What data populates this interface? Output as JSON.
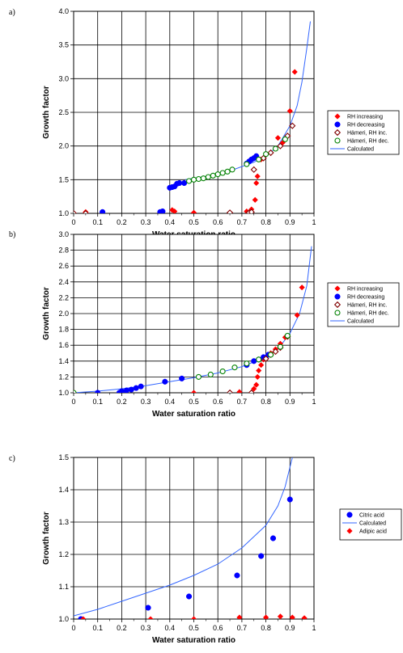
{
  "chart_data": [
    {
      "type": "scatter",
      "panel_label": "a)",
      "xlabel": "Water saturation ratio",
      "ylabel": "Growth factor",
      "xlim": [
        0,
        1
      ],
      "ylim": [
        1.0,
        4.0
      ],
      "xticks": [
        "0",
        "0.1",
        "0.2",
        "0.3",
        "0.4",
        "0.5",
        "0.6",
        "0.7",
        "0.8",
        "0.9",
        "1"
      ],
      "yticks": [
        "1.0",
        "1.5",
        "2.0",
        "2.5",
        "3.0",
        "3.5",
        "4.0"
      ],
      "grid": true,
      "legend_position": "right",
      "series": [
        {
          "name": "RH increasing",
          "marker": "diamond-filled",
          "color": "#ff0000",
          "points": [
            [
              0.05,
              1.02
            ],
            [
              0.41,
              1.05
            ],
            [
              0.42,
              1.03
            ],
            [
              0.5,
              1.01
            ],
            [
              0.72,
              1.03
            ],
            [
              0.74,
              1.06
            ],
            [
              0.755,
              1.2
            ],
            [
              0.76,
              1.45
            ],
            [
              0.765,
              1.55
            ],
            [
              0.78,
              1.8
            ],
            [
              0.82,
              1.9
            ],
            [
              0.85,
              2.12
            ],
            [
              0.87,
              2.05
            ],
            [
              0.9,
              2.52
            ],
            [
              0.92,
              3.1
            ]
          ]
        },
        {
          "name": "RH decreasing",
          "marker": "circle-filled",
          "color": "#0000ff",
          "points": [
            [
              0.12,
              1.02
            ],
            [
              0.37,
              1.03
            ],
            [
              0.36,
              1.02
            ],
            [
              0.4,
              1.38
            ],
            [
              0.41,
              1.39
            ],
            [
              0.42,
              1.4
            ],
            [
              0.43,
              1.44
            ],
            [
              0.44,
              1.45
            ],
            [
              0.46,
              1.45
            ],
            [
              0.72,
              1.74
            ],
            [
              0.73,
              1.77
            ],
            [
              0.74,
              1.8
            ],
            [
              0.75,
              1.82
            ],
            [
              0.76,
              1.85
            ]
          ]
        },
        {
          "name": "Hämeri, RH inc.",
          "marker": "diamond-open",
          "color": "#800000",
          "points": [
            [
              0.0,
              1.0
            ],
            [
              0.05,
              1.0
            ],
            [
              0.65,
              1.01
            ],
            [
              0.73,
              1.01
            ],
            [
              0.74,
              1.02
            ],
            [
              0.75,
              1.65
            ],
            [
              0.79,
              1.82
            ],
            [
              0.82,
              1.9
            ],
            [
              0.86,
              2.0
            ],
            [
              0.89,
              2.15
            ],
            [
              0.91,
              2.3
            ]
          ]
        },
        {
          "name": "Hämeri, RH dec.",
          "marker": "circle-open",
          "color": "#008000",
          "points": [
            [
              0.48,
              1.48
            ],
            [
              0.5,
              1.5
            ],
            [
              0.52,
              1.51
            ],
            [
              0.54,
              1.52
            ],
            [
              0.56,
              1.54
            ],
            [
              0.58,
              1.56
            ],
            [
              0.6,
              1.58
            ],
            [
              0.62,
              1.6
            ],
            [
              0.64,
              1.62
            ],
            [
              0.66,
              1.65
            ],
            [
              0.72,
              1.73
            ],
            [
              0.77,
              1.8
            ],
            [
              0.8,
              1.88
            ],
            [
              0.84,
              1.96
            ],
            [
              0.88,
              2.1
            ]
          ]
        },
        {
          "name": "Calculated",
          "marker": "line",
          "color": "#3366ff",
          "points": [
            [
              0.465,
              1.5
            ],
            [
              0.55,
              1.55
            ],
            [
              0.65,
              1.63
            ],
            [
              0.75,
              1.76
            ],
            [
              0.8,
              1.85
            ],
            [
              0.85,
              2.0
            ],
            [
              0.9,
              2.3
            ],
            [
              0.93,
              2.6
            ],
            [
              0.95,
              2.95
            ],
            [
              0.97,
              3.45
            ],
            [
              0.985,
              3.85
            ]
          ]
        }
      ]
    },
    {
      "type": "scatter",
      "panel_label": "b)",
      "xlabel": "Water saturation ratio",
      "ylabel": "Growth factor",
      "xlim": [
        0,
        1
      ],
      "ylim": [
        1.0,
        3.0
      ],
      "xticks": [
        "0",
        "0.1",
        "0.2",
        "0.3",
        "0.4",
        "0.5",
        "0.6",
        "0.7",
        "0.8",
        "0.9",
        "1"
      ],
      "yticks": [
        "1.0",
        "1.2",
        "1.4",
        "1.6",
        "1.8",
        "2.0",
        "2.2",
        "2.4",
        "2.6",
        "2.8",
        "3.0"
      ],
      "grid": true,
      "legend_position": "right",
      "series": [
        {
          "name": "RH increasing",
          "marker": "diamond-filled",
          "color": "#ff0000",
          "points": [
            [
              0.5,
              1.0
            ],
            [
              0.69,
              1.01
            ],
            [
              0.75,
              1.05
            ],
            [
              0.76,
              1.1
            ],
            [
              0.765,
              1.2
            ],
            [
              0.77,
              1.28
            ],
            [
              0.78,
              1.35
            ],
            [
              0.79,
              1.42
            ],
            [
              0.82,
              1.5
            ],
            [
              0.84,
              1.55
            ],
            [
              0.86,
              1.62
            ],
            [
              0.88,
              1.7
            ],
            [
              0.93,
              1.98
            ],
            [
              0.95,
              2.33
            ]
          ]
        },
        {
          "name": "RH decreasing",
          "marker": "circle-filled",
          "color": "#0000ff",
          "points": [
            [
              0.1,
              1.0
            ],
            [
              0.19,
              1.0
            ],
            [
              0.2,
              1.02
            ],
            [
              0.22,
              1.03
            ],
            [
              0.24,
              1.04
            ],
            [
              0.26,
              1.06
            ],
            [
              0.28,
              1.08
            ],
            [
              0.38,
              1.14
            ],
            [
              0.45,
              1.18
            ],
            [
              0.72,
              1.35
            ],
            [
              0.75,
              1.4
            ],
            [
              0.77,
              1.42
            ],
            [
              0.79,
              1.45
            ],
            [
              0.81,
              1.48
            ]
          ]
        },
        {
          "name": "Hämeri, RH inc.",
          "marker": "diamond-open",
          "color": "#800000",
          "points": [
            [
              0.0,
              1.0
            ],
            [
              0.65,
              1.0
            ],
            [
              0.74,
              1.0
            ],
            [
              0.8,
              1.43
            ],
            [
              0.82,
              1.48
            ],
            [
              0.84,
              1.52
            ],
            [
              0.86,
              1.57
            ],
            [
              0.89,
              1.71
            ]
          ]
        },
        {
          "name": "Hämeri, RH dec.",
          "marker": "circle-open",
          "color": "#008000",
          "points": [
            [
              0.0,
              1.0
            ],
            [
              0.52,
              1.2
            ],
            [
              0.57,
              1.23
            ],
            [
              0.62,
              1.27
            ],
            [
              0.67,
              1.32
            ],
            [
              0.72,
              1.37
            ],
            [
              0.77,
              1.42
            ],
            [
              0.82,
              1.48
            ],
            [
              0.86,
              1.58
            ],
            [
              0.89,
              1.72
            ]
          ]
        },
        {
          "name": "Calculated",
          "marker": "line",
          "color": "#3366ff",
          "points": [
            [
              0.0,
              1.0
            ],
            [
              0.1,
              1.02
            ],
            [
              0.2,
              1.05
            ],
            [
              0.3,
              1.09
            ],
            [
              0.4,
              1.14
            ],
            [
              0.5,
              1.19
            ],
            [
              0.6,
              1.25
            ],
            [
              0.7,
              1.33
            ],
            [
              0.8,
              1.45
            ],
            [
              0.85,
              1.55
            ],
            [
              0.9,
              1.75
            ],
            [
              0.94,
              2.0
            ],
            [
              0.97,
              2.35
            ],
            [
              0.99,
              2.85
            ]
          ]
        }
      ]
    },
    {
      "type": "scatter",
      "panel_label": "c)",
      "xlabel": "Water saturation ratio",
      "ylabel": "Growth factor",
      "xlim": [
        0,
        1
      ],
      "ylim": [
        1.0,
        1.5
      ],
      "xticks": [
        "0",
        "0.1",
        "0.2",
        "0.3",
        "0.4",
        "0.5",
        "0.6",
        "0.7",
        "0.8",
        "0.9",
        "1"
      ],
      "yticks": [
        "1.0",
        "1.1",
        "1.2",
        "1.3",
        "1.4",
        "1.5"
      ],
      "grid": true,
      "legend_position": "right",
      "series": [
        {
          "name": "Citric acid",
          "marker": "circle-filled",
          "color": "#0000ff",
          "points": [
            [
              0.03,
              1.0
            ],
            [
              0.31,
              1.035
            ],
            [
              0.48,
              1.07
            ],
            [
              0.68,
              1.135
            ],
            [
              0.78,
              1.195
            ],
            [
              0.83,
              1.25
            ],
            [
              0.9,
              1.37
            ]
          ]
        },
        {
          "name": "Calculated",
          "marker": "line",
          "color": "#3366ff",
          "points": [
            [
              0.0,
              1.01
            ],
            [
              0.1,
              1.03
            ],
            [
              0.2,
              1.055
            ],
            [
              0.3,
              1.08
            ],
            [
              0.4,
              1.105
            ],
            [
              0.5,
              1.135
            ],
            [
              0.6,
              1.17
            ],
            [
              0.7,
              1.22
            ],
            [
              0.8,
              1.29
            ],
            [
              0.85,
              1.35
            ],
            [
              0.88,
              1.41
            ],
            [
              0.91,
              1.5
            ]
          ]
        },
        {
          "name": "Adipic acid",
          "marker": "diamond-filled",
          "color": "#ff0000",
          "points": [
            [
              0.04,
              1.0
            ],
            [
              0.32,
              1.0
            ],
            [
              0.5,
              1.0
            ],
            [
              0.69,
              1.005
            ],
            [
              0.8,
              1.005
            ],
            [
              0.86,
              1.008
            ],
            [
              0.91,
              1.005
            ],
            [
              0.96,
              1.003
            ]
          ]
        }
      ]
    }
  ]
}
